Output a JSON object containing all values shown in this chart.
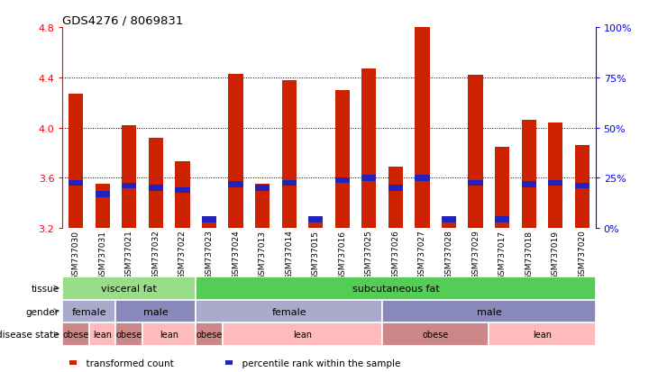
{
  "title": "GDS4276 / 8069831",
  "samples": [
    "GSM737030",
    "GSM737031",
    "GSM737021",
    "GSM737032",
    "GSM737022",
    "GSM737023",
    "GSM737024",
    "GSM737013",
    "GSM737014",
    "GSM737015",
    "GSM737016",
    "GSM737025",
    "GSM737026",
    "GSM737027",
    "GSM737028",
    "GSM737029",
    "GSM737017",
    "GSM737018",
    "GSM737019",
    "GSM737020"
  ],
  "bar_heights": [
    4.27,
    3.55,
    4.02,
    3.92,
    3.73,
    3.27,
    4.43,
    3.55,
    4.38,
    3.27,
    4.3,
    4.47,
    3.69,
    4.8,
    3.27,
    4.42,
    3.85,
    4.06,
    4.04,
    3.86
  ],
  "blue_pos": [
    3.56,
    3.47,
    3.54,
    3.52,
    3.5,
    3.27,
    3.55,
    3.52,
    3.56,
    3.27,
    3.58,
    3.6,
    3.52,
    3.6,
    3.27,
    3.56,
    3.27,
    3.55,
    3.56,
    3.54
  ],
  "ymin": 3.2,
  "ymax": 4.8,
  "yticks": [
    3.2,
    3.6,
    4.0,
    4.4,
    4.8
  ],
  "right_ytick_vals": [
    0,
    25,
    50,
    75,
    100
  ],
  "bar_color": "#cc2200",
  "blue_color": "#2222bb",
  "grid_yticks": [
    3.6,
    4.0,
    4.4
  ],
  "bar_width": 0.55,
  "blue_bar_height": 0.045,
  "tissue_regions": [
    {
      "label": "visceral fat",
      "start": 0,
      "end": 5,
      "color": "#99dd88"
    },
    {
      "label": "subcutaneous fat",
      "start": 5,
      "end": 20,
      "color": "#55cc55"
    }
  ],
  "gender_regions": [
    {
      "label": "female",
      "start": 0,
      "end": 2,
      "color": "#aaaacc"
    },
    {
      "label": "male",
      "start": 2,
      "end": 5,
      "color": "#8888bb"
    },
    {
      "label": "female",
      "start": 5,
      "end": 12,
      "color": "#aaaacc"
    },
    {
      "label": "male",
      "start": 12,
      "end": 20,
      "color": "#8888bb"
    }
  ],
  "disease_regions": [
    {
      "label": "obese",
      "start": 0,
      "end": 1,
      "color": "#cc8888"
    },
    {
      "label": "lean",
      "start": 1,
      "end": 2,
      "color": "#ffbbbb"
    },
    {
      "label": "obese",
      "start": 2,
      "end": 3,
      "color": "#cc8888"
    },
    {
      "label": "lean",
      "start": 3,
      "end": 5,
      "color": "#ffbbbb"
    },
    {
      "label": "obese",
      "start": 5,
      "end": 6,
      "color": "#cc8888"
    },
    {
      "label": "lean",
      "start": 6,
      "end": 12,
      "color": "#ffbbbb"
    },
    {
      "label": "obese",
      "start": 12,
      "end": 16,
      "color": "#cc8888"
    },
    {
      "label": "lean",
      "start": 16,
      "end": 20,
      "color": "#ffbbbb"
    }
  ],
  "row_labels": [
    "tissue",
    "gender",
    "disease state"
  ],
  "legend_items": [
    {
      "label": "transformed count",
      "color": "#cc2200"
    },
    {
      "label": "percentile rank within the sample",
      "color": "#2222bb"
    }
  ]
}
